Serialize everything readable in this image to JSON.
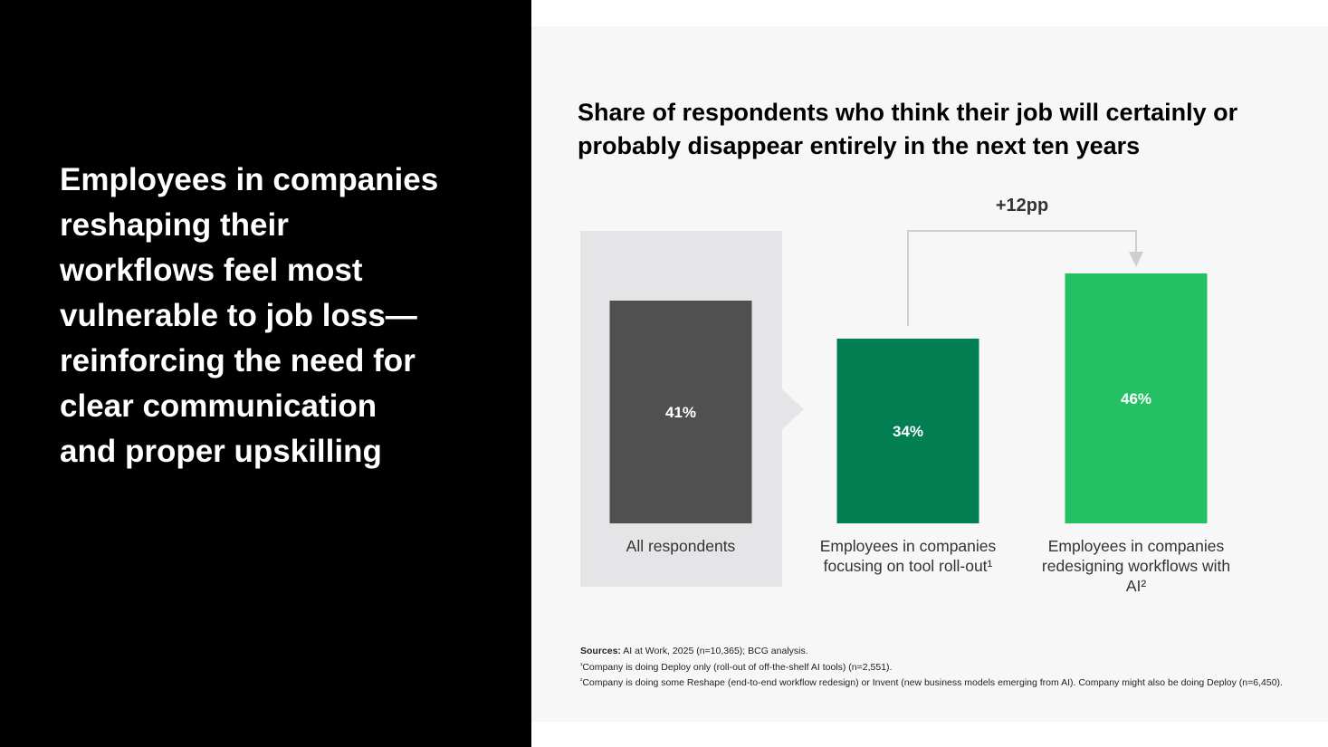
{
  "headline": "Employees in companies reshaping their workflows feel most vulnerable to job loss—reinforcing the need for clear communication and proper upskilling",
  "colors": {
    "left_background": "#000000",
    "right_background": "#f7f7f7",
    "highlight_box": "#e5e5e7",
    "all_respondents_bar": "#505050",
    "tool_rollout_bar": "#027f52",
    "redesign_bar": "#23c064",
    "connector": "#cfcfcf"
  },
  "chart_data": {
    "type": "bar",
    "title": "Share of respondents who think their job will certainly or probably disappear entirely in the next ten years",
    "categories": [
      "All respondents",
      "Employees in companies focusing on tool roll-out¹",
      "Employees in companies redesigning workflows with AI²"
    ],
    "values": [
      41,
      34,
      46
    ],
    "value_labels": [
      "41%",
      "34%",
      "46%"
    ],
    "unit": "%",
    "ylim": [
      0,
      50
    ],
    "annotation": {
      "label": "+12pp",
      "from_category": 1,
      "to_category": 2
    },
    "highlighted_category": 0
  },
  "sources": {
    "label": "Sources:",
    "text": "AI at Work, 2025 (n=10,365); BCG analysis.",
    "footnote1_marker": "¹",
    "footnote1": "Company is doing Deploy only (roll-out of off-the-shelf AI tools) (n=2,551).",
    "footnote2_marker": "²",
    "footnote2": "Company is doing some Reshape (end-to-end workflow redesign) or Invent (new business models emerging from AI). Company might also be doing Deploy (n=6,450)."
  }
}
